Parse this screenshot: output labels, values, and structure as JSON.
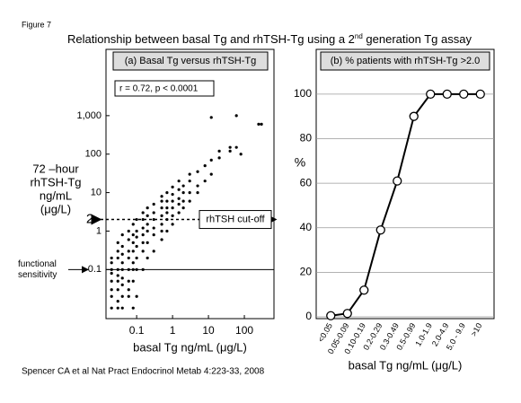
{
  "figure_label": "Figure 7",
  "title_parts": [
    "Relationship between basal Tg and rhTSH-Tg using a  2",
    "nd",
    " generation Tg assay"
  ],
  "citation": "Spencer CA et al Nat Pract Endocrinol Metab 4:223-33, 2008",
  "chart_data": [
    {
      "type": "scatter",
      "title": "(a) Basal Tg versus rhTSH-Tg",
      "x_label": "basal Tg  ng/mL (μg/L)",
      "y_label": [
        "72 –hour",
        "rhTSH-Tg",
        "ng/mL",
        "(μg/L)"
      ],
      "log_x": true,
      "log_y": true,
      "color": "#000000",
      "xlim": [
        0.014,
        668
      ],
      "ylim": [
        0.0053,
        13800
      ],
      "xticks": [
        0.1,
        1,
        10,
        100
      ],
      "yticks": [
        0.1,
        1,
        10,
        100,
        {
          "value": 1000,
          "label": "1,000"
        }
      ],
      "annotations": [
        "r = 0.72, p < 0.0001",
        "rhTSH cut-off"
      ],
      "reference_lines": [
        {
          "value": 0.1,
          "style": "solid",
          "label": [
            "functional",
            "sensitivity"
          ]
        },
        {
          "value": 2,
          "style": "dashed"
        }
      ],
      "series": [
        {
          "name": null,
          "x": [
            0.02,
            0.02,
            0.02,
            0.02,
            0.02,
            0.02,
            0.02,
            0.02,
            0.03,
            0.03,
            0.03,
            0.03,
            0.03,
            0.03,
            0.03,
            0.03,
            0.03,
            0.04,
            0.04,
            0.04,
            0.04,
            0.04,
            0.04,
            0.04,
            0.04,
            0.04,
            0.06,
            0.06,
            0.06,
            0.06,
            0.06,
            0.06,
            0.06,
            0.06,
            0.08,
            0.08,
            0.08,
            0.08,
            0.08,
            0.08,
            0.08,
            0.08,
            0.1,
            0.1,
            0.1,
            0.1,
            0.1,
            0.1,
            0.1,
            0.15,
            0.15,
            0.15,
            0.15,
            0.15,
            0.15,
            0.15,
            0.2,
            0.2,
            0.2,
            0.2,
            0.2,
            0.2,
            0.3,
            0.3,
            0.3,
            0.3,
            0.3,
            0.3,
            0.5,
            0.5,
            0.5,
            0.5,
            0.5,
            0.5,
            0.5,
            0.7,
            0.7,
            0.7,
            0.7,
            0.7,
            0.7,
            1,
            1,
            1,
            1,
            1,
            1,
            1.5,
            1.5,
            1.5,
            1.5,
            1.5,
            2,
            2,
            2,
            2,
            3,
            3,
            3,
            3,
            5,
            5,
            5,
            8,
            8,
            12,
            12,
            12,
            20,
            20,
            40,
            40,
            60,
            60,
            80,
            250,
            300
          ],
          "values": [
            0.01,
            0.02,
            0.03,
            0.05,
            0.08,
            0.1,
            0.15,
            0.2,
            0.01,
            0.015,
            0.03,
            0.05,
            0.07,
            0.1,
            0.2,
            0.3,
            0.5,
            0.01,
            0.02,
            0.04,
            0.06,
            0.1,
            0.15,
            0.25,
            0.4,
            0.8,
            0.02,
            0.03,
            0.05,
            0.1,
            0.2,
            0.3,
            0.6,
            1,
            0.01,
            0.05,
            0.1,
            0.15,
            0.3,
            0.5,
            0.8,
            1.5,
            0.02,
            0.1,
            0.2,
            0.4,
            0.7,
            1,
            2,
            0.1,
            0.3,
            0.5,
            0.8,
            1.2,
            2,
            3,
            0.2,
            0.5,
            1,
            1.5,
            2.5,
            4,
            0.3,
            0.8,
            1.2,
            2,
            3,
            5,
            0.6,
            1,
            1.5,
            2.5,
            4,
            6,
            8,
            1,
            2,
            3,
            4,
            6,
            10,
            1.5,
            2.5,
            4,
            6,
            9,
            14,
            3,
            5,
            7,
            12,
            20,
            4,
            6,
            10,
            15,
            6,
            10,
            20,
            30,
            10,
            15,
            35,
            20,
            50,
            30,
            70,
            900,
            80,
            120,
            120,
            150,
            150,
            1000,
            100,
            600,
            600
          ]
        }
      ]
    },
    {
      "type": "line",
      "title": "(b) % patients with rhTSH-Tg >2.0",
      "x_label": "basal Tg  ng/mL (μg/L)",
      "y_label": "%",
      "categories": [
        "<0.05",
        "0.05-0.09",
        "0.10-0.19",
        "0.2-0.29",
        "0.3-0.49",
        "0.5-0.99",
        "1.0-1.9",
        "2.0-4.9",
        "5.0 - 9.9",
        ">10"
      ],
      "values": [
        0.5,
        1.5,
        12,
        39,
        61,
        90,
        100,
        100,
        100,
        100
      ],
      "color": "#000000",
      "ylim": [
        0,
        108
      ],
      "yticks": [
        0,
        20,
        40,
        60,
        80,
        100
      ],
      "grid": true
    }
  ]
}
